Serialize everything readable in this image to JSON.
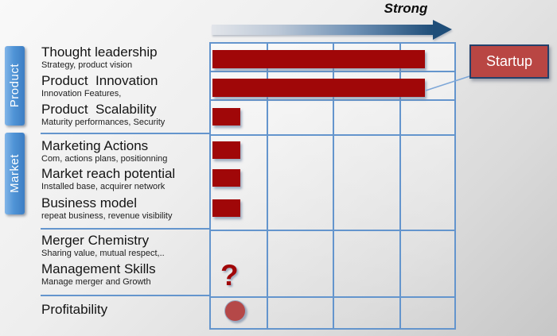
{
  "slide": {
    "axis_label": "Strong",
    "callout_label": "Startup",
    "question_mark": "?"
  },
  "sections": [
    {
      "label": "Product"
    },
    {
      "label": "Market"
    }
  ],
  "matrix": {
    "columns": 4,
    "rows": [
      {
        "title": "Thought leadership",
        "subtitle": "Strategy, product vision",
        "indicator": "bar",
        "strength": 0.86
      },
      {
        "title": "Product  Innovation",
        "subtitle": "Innovation Features,",
        "indicator": "bar",
        "strength": 0.86
      },
      {
        "title": "Product  Scalability",
        "subtitle": "Maturity performances, Security",
        "indicator": "bar",
        "strength": 0.113
      },
      {
        "title": "Marketing Actions",
        "subtitle": "Com, actions plans, positionning",
        "indicator": "bar",
        "strength": 0.113
      },
      {
        "title": "Market reach potential",
        "subtitle": "Installed base, acquirer network",
        "indicator": "bar",
        "strength": 0.113
      },
      {
        "title": "Business model",
        "subtitle": "repeat business, revenue visibility",
        "indicator": "bar",
        "strength": 0.113
      },
      {
        "title": "Merger Chemistry",
        "subtitle": "Sharing value, mutual respect,..",
        "indicator": "none",
        "strength": null
      },
      {
        "title": "Management Skills",
        "subtitle": "Manage merger and Growth",
        "indicator": "question-mark",
        "strength": null
      },
      {
        "title": "Profitability",
        "subtitle": "",
        "indicator": "dot",
        "strength": null
      }
    ]
  },
  "colors": {
    "bar_red": "#a00708",
    "grid_blue": "#6495cd",
    "tab_blue": "#4a8fd3",
    "callout_fill": "#b94643",
    "callout_border": "#24416b",
    "arrow_dark_blue": "#1f4e79",
    "dot_red": "#b54848"
  }
}
